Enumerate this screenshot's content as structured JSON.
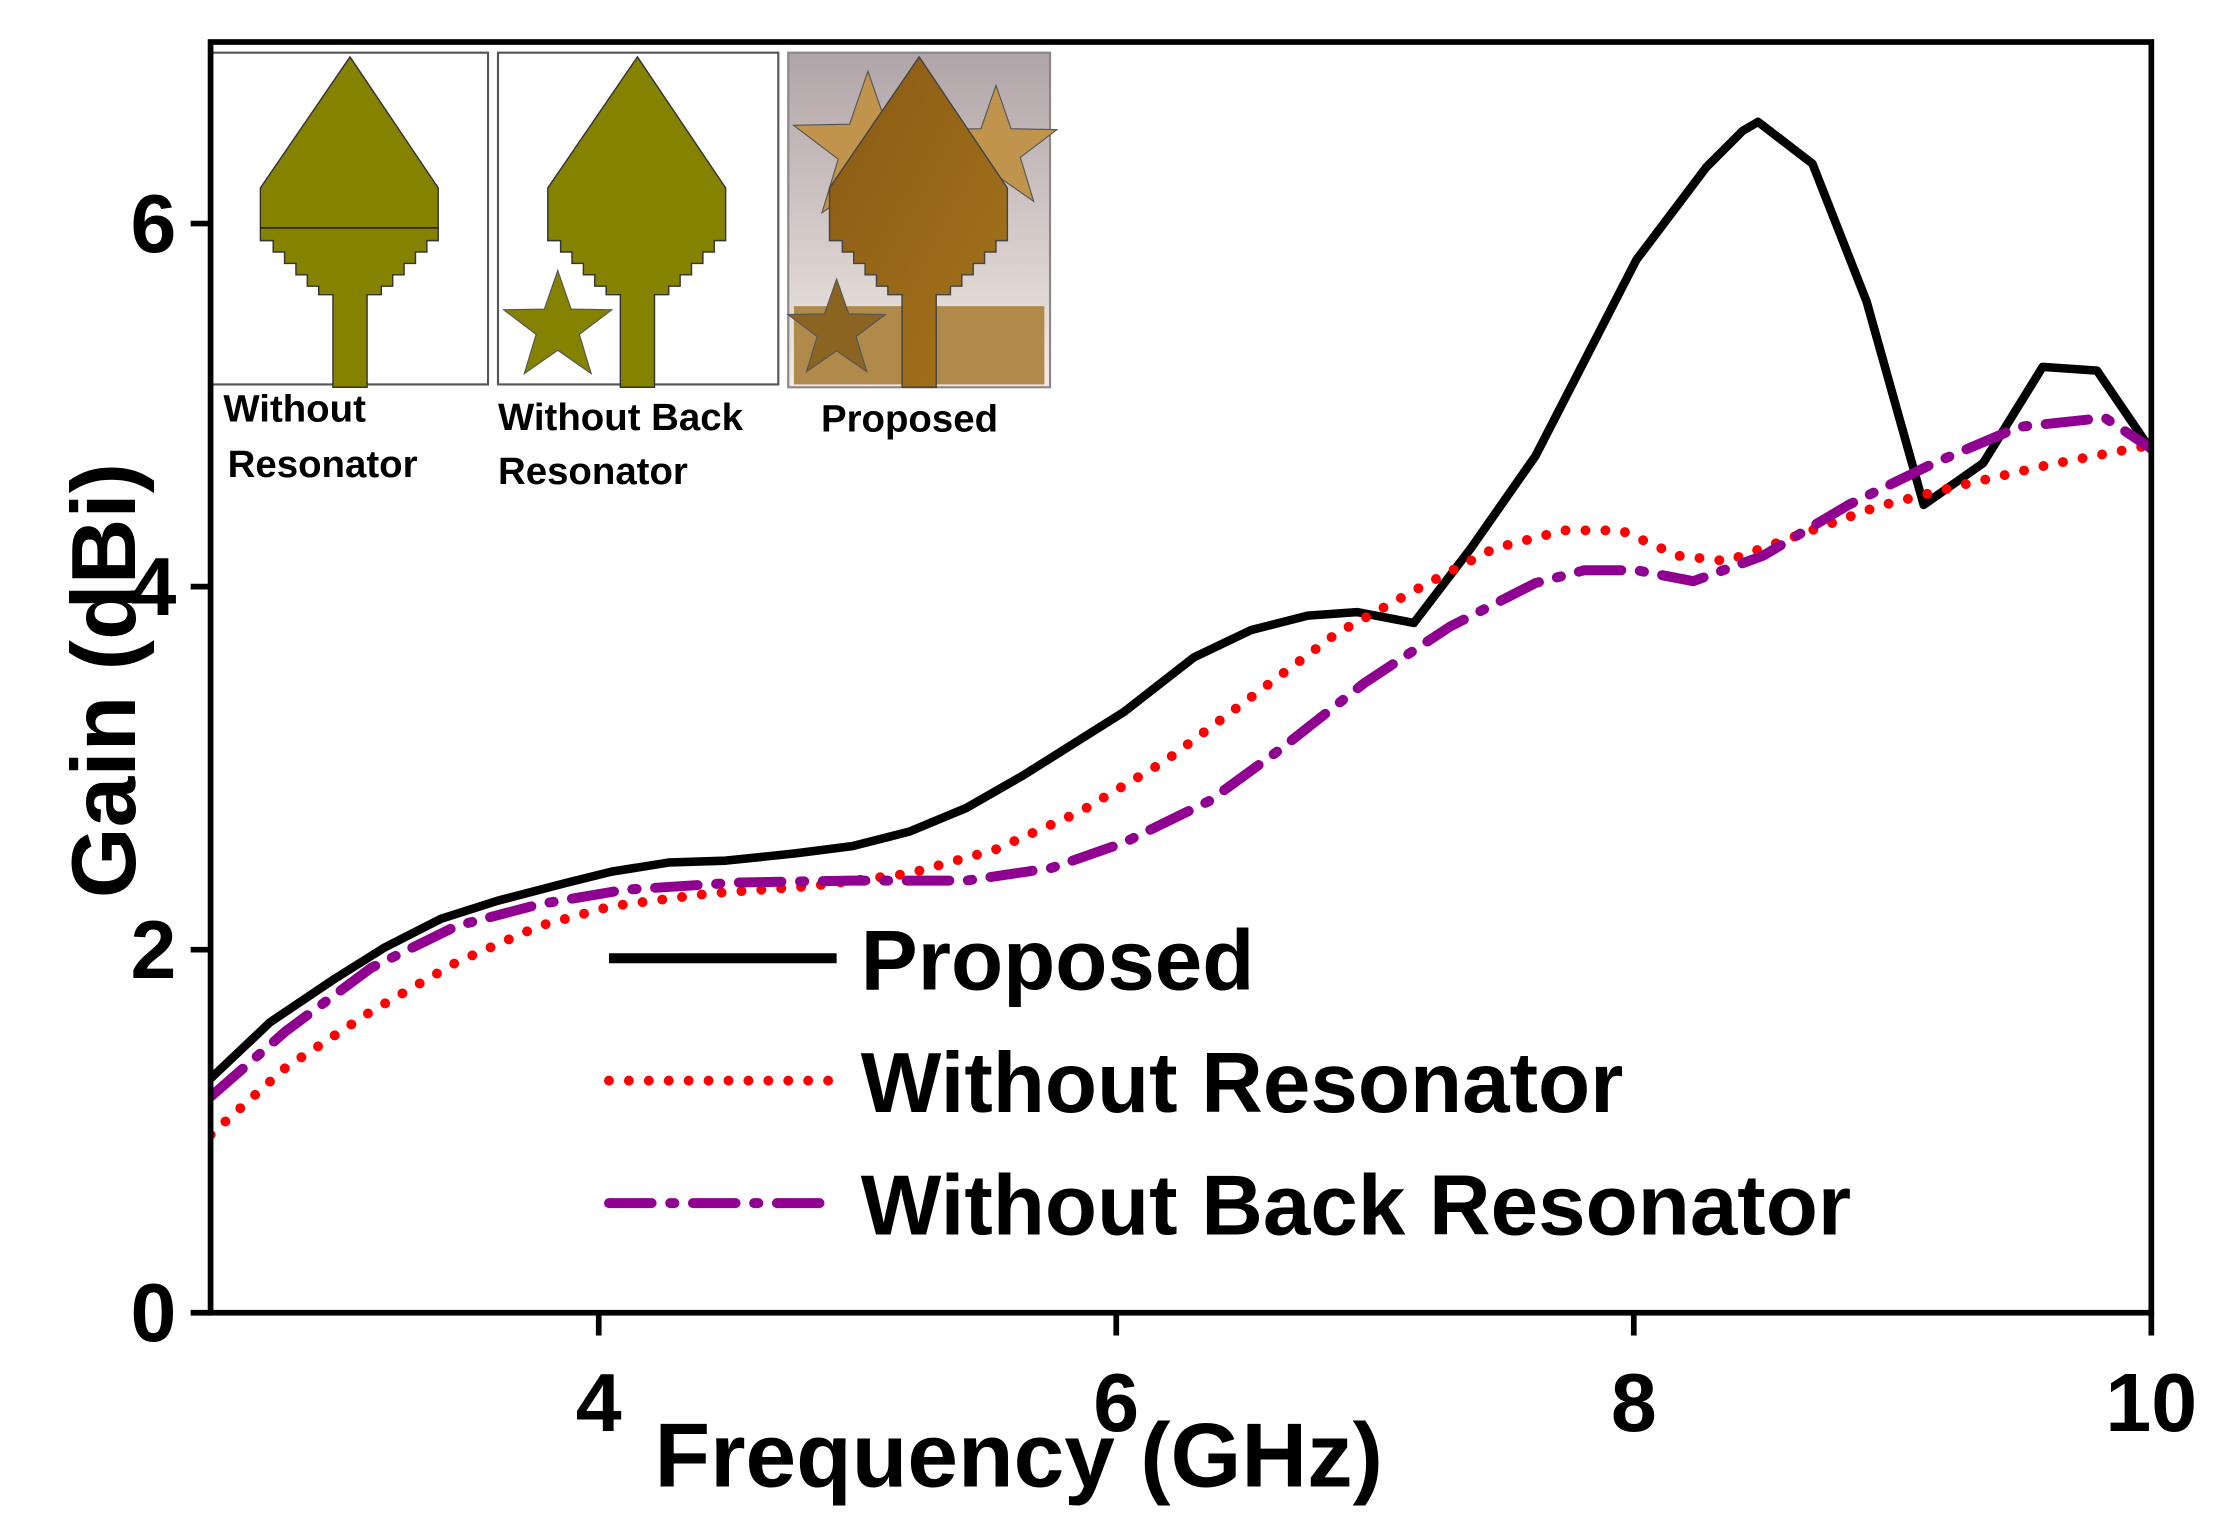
{
  "chart_data": {
    "type": "line",
    "xlabel": "Frequency (GHz)",
    "ylabel": "Gain (dBi)",
    "xlim": [
      2.5,
      10
    ],
    "ylim": [
      0,
      7
    ],
    "xticks": [
      4,
      6,
      8,
      10
    ],
    "yticks": [
      0,
      2,
      4,
      6
    ],
    "grid": false,
    "series": [
      {
        "name": "Proposed",
        "color": "#000000",
        "style": "solid",
        "x": [
          2.5,
          2.73,
          2.98,
          3.17,
          3.39,
          3.61,
          3.88,
          4.05,
          4.27,
          4.49,
          4.76,
          4.98,
          5.2,
          5.42,
          5.64,
          6.03,
          6.3,
          6.52,
          6.74,
          6.93,
          7.15,
          7.37,
          7.62,
          8.01,
          8.28,
          8.42,
          8.48,
          8.69,
          8.9,
          9.12,
          9.35,
          9.58,
          9.79,
          10
        ],
        "values": [
          1.29,
          1.6,
          1.84,
          2.01,
          2.17,
          2.27,
          2.37,
          2.43,
          2.48,
          2.49,
          2.53,
          2.57,
          2.65,
          2.78,
          2.96,
          3.31,
          3.61,
          3.76,
          3.84,
          3.86,
          3.8,
          4.21,
          4.72,
          5.8,
          6.31,
          6.51,
          6.56,
          6.33,
          5.57,
          4.45,
          4.68,
          5.21,
          5.19,
          4.75
        ]
      },
      {
        "name": "Without Resonator",
        "color": "#ff0000",
        "style": "dotted",
        "x": [
          2.5,
          2.79,
          3.12,
          3.45,
          3.77,
          4.05,
          4.43,
          4.82,
          5.2,
          5.53,
          5.86,
          6.19,
          6.52,
          6.85,
          7.18,
          7.46,
          7.73,
          7.95,
          8.17,
          8.36,
          8.61,
          8.94,
          9.27,
          9.6,
          10
        ],
        "values": [
          0.98,
          1.35,
          1.66,
          1.93,
          2.13,
          2.24,
          2.31,
          2.35,
          2.42,
          2.55,
          2.76,
          3.04,
          3.39,
          3.74,
          4.0,
          4.21,
          4.31,
          4.31,
          4.17,
          4.14,
          4.27,
          4.44,
          4.56,
          4.67,
          4.78
        ]
      },
      {
        "name": "Without Back Resonator",
        "color": "#900090",
        "style": "dashdot",
        "x": [
          2.5,
          2.79,
          3.12,
          3.45,
          3.77,
          4.1,
          4.54,
          4.98,
          5.42,
          5.75,
          6.03,
          6.36,
          6.63,
          6.96,
          7.29,
          7.62,
          7.81,
          8.01,
          8.23,
          8.5,
          8.83,
          9.16,
          9.49,
          9.82,
          10
        ],
        "values": [
          1.19,
          1.55,
          1.9,
          2.13,
          2.25,
          2.33,
          2.37,
          2.38,
          2.38,
          2.45,
          2.59,
          2.82,
          3.1,
          3.47,
          3.78,
          4.02,
          4.09,
          4.09,
          4.03,
          4.17,
          4.45,
          4.68,
          4.88,
          4.93,
          4.76
        ]
      }
    ],
    "insets": [
      {
        "caption": [
          "Without",
          "Resonator"
        ]
      },
      {
        "caption": [
          "Without Back",
          "Resonator"
        ]
      },
      {
        "caption": [
          "Proposed"
        ]
      }
    ]
  }
}
